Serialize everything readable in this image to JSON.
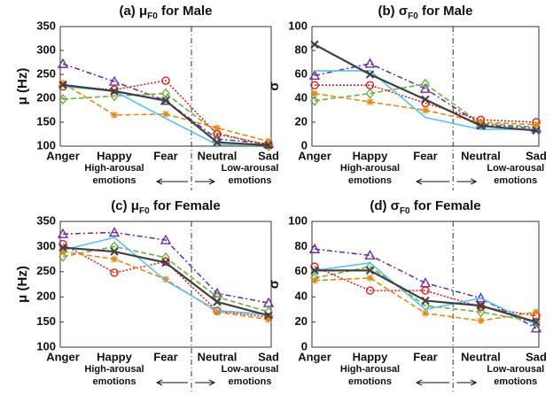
{
  "chart_data": [
    {
      "type": "line",
      "title": {
        "prefix": "(a) μ",
        "sub": "F0",
        "suffix": " for Male"
      },
      "ylabel": "μ (Hz)",
      "categories": [
        "Anger",
        "Happy",
        "Fear",
        "Neutral",
        "Sad"
      ],
      "ylim": [
        100,
        350
      ],
      "yticks": [
        100,
        150,
        200,
        250,
        300,
        350
      ],
      "annotations": [
        [
          "High-arousal",
          "emotions"
        ],
        [
          "Low-arousal",
          "emotions"
        ]
      ],
      "series": [
        {
          "color": "#7030a0",
          "dash": "6 3 2 3",
          "marker": "triangle",
          "values": [
            272,
            235,
            195,
            115,
            105
          ]
        },
        {
          "color": "#70ad47",
          "dash": "6 3",
          "marker": "diamond",
          "values": [
            198,
            205,
            210,
            128,
            100
          ]
        },
        {
          "color": "#e02020",
          "dash": "2 2",
          "marker": "circle",
          "values": [
            225,
            218,
            237,
            125,
            103
          ]
        },
        {
          "color": "#e08a1e",
          "dash": "6 3",
          "marker": "star",
          "values": [
            232,
            165,
            167,
            138,
            110
          ]
        },
        {
          "color": "#5bc0eb",
          "dash": "",
          "marker": "none",
          "values": [
            225,
            215,
            158,
            103,
            103
          ]
        },
        {
          "color": "#404040",
          "dash": "",
          "marker": "x",
          "values": [
            228,
            215,
            195,
            108,
            102
          ]
        }
      ]
    },
    {
      "type": "line",
      "title": {
        "prefix": "(b) σ",
        "sub": "F0",
        "suffix": " for Male"
      },
      "ylabel": "σ",
      "categories": [
        "Anger",
        "Happy",
        "Fear",
        "Neutral",
        "Sad"
      ],
      "ylim": [
        0,
        100
      ],
      "yticks": [
        0,
        20,
        40,
        60,
        80,
        100
      ],
      "annotations": [
        [
          "High-arousal",
          "emotions"
        ],
        [
          "Low-arousal",
          "emotions"
        ]
      ],
      "series": [
        {
          "color": "#7030a0",
          "dash": "6 3 2 3",
          "marker": "triangle",
          "values": [
            59,
            69,
            48,
            18,
            15
          ]
        },
        {
          "color": "#70ad47",
          "dash": "6 3",
          "marker": "diamond",
          "values": [
            38,
            44,
            52,
            19,
            16
          ]
        },
        {
          "color": "#e02020",
          "dash": "2 2",
          "marker": "circle",
          "values": [
            51,
            51,
            36,
            22,
            20
          ]
        },
        {
          "color": "#e08a1e",
          "dash": "6 3",
          "marker": "star",
          "values": [
            44,
            37,
            30,
            20,
            18
          ]
        },
        {
          "color": "#5bc0eb",
          "dash": "",
          "marker": "none",
          "values": [
            63,
            63,
            24,
            14,
            14
          ]
        },
        {
          "color": "#404040",
          "dash": "",
          "marker": "x",
          "values": [
            85,
            60,
            39,
            17,
            13
          ]
        }
      ]
    },
    {
      "type": "line",
      "title": {
        "prefix": "(c) μ",
        "sub": "F0",
        "suffix": " for Female"
      },
      "ylabel": "μ (Hz)",
      "categories": [
        "Anger",
        "Happy",
        "Fear",
        "Neutral",
        "Sad"
      ],
      "ylim": [
        100,
        350
      ],
      "yticks": [
        100,
        150,
        200,
        250,
        300,
        350
      ],
      "annotations": [
        [
          "High-arousal",
          "emotions"
        ],
        [
          "Low-arousal",
          "emotions"
        ]
      ],
      "series": [
        {
          "color": "#7030a0",
          "dash": "6 3 2 3",
          "marker": "triangle",
          "values": [
            325,
            328,
            313,
            207,
            188
          ]
        },
        {
          "color": "#70ad47",
          "dash": "6 3",
          "marker": "diamond",
          "values": [
            280,
            300,
            278,
            200,
            170
          ]
        },
        {
          "color": "#e02020",
          "dash": "2 2",
          "marker": "circle",
          "values": [
            305,
            248,
            270,
            172,
            160
          ]
        },
        {
          "color": "#e08a1e",
          "dash": "6 3",
          "marker": "star",
          "values": [
            290,
            275,
            235,
            170,
            155
          ]
        },
        {
          "color": "#5bc0eb",
          "dash": "",
          "marker": "none",
          "values": [
            293,
            318,
            232,
            173,
            165
          ]
        },
        {
          "color": "#404040",
          "dash": "",
          "marker": "x",
          "values": [
            298,
            290,
            268,
            190,
            163
          ]
        }
      ]
    },
    {
      "type": "line",
      "title": {
        "prefix": "(d) σ",
        "sub": "F0",
        "suffix": " for Female"
      },
      "ylabel": "σ",
      "categories": [
        "Anger",
        "Happy",
        "Fear",
        "Neutral",
        "Sad"
      ],
      "ylim": [
        0,
        100
      ],
      "yticks": [
        0,
        20,
        40,
        60,
        80,
        100
      ],
      "annotations": [
        [
          "High-arousal",
          "emotions"
        ],
        [
          "Low-arousal",
          "emotions"
        ]
      ],
      "series": [
        {
          "color": "#7030a0",
          "dash": "6 3 2 3",
          "marker": "triangle",
          "values": [
            78,
            73,
            51,
            39,
            15
          ]
        },
        {
          "color": "#70ad47",
          "dash": "6 3",
          "marker": "diamond",
          "values": [
            55,
            64,
            33,
            28,
            20
          ]
        },
        {
          "color": "#e02020",
          "dash": "2 2",
          "marker": "circle",
          "values": [
            64,
            45,
            45,
            32,
            25
          ]
        },
        {
          "color": "#e08a1e",
          "dash": "6 3",
          "marker": "star",
          "values": [
            53,
            55,
            27,
            21,
            28
          ]
        },
        {
          "color": "#5bc0eb",
          "dash": "",
          "marker": "none",
          "values": [
            61,
            67,
            30,
            39,
            18
          ]
        },
        {
          "color": "#404040",
          "dash": "",
          "marker": "x",
          "values": [
            61,
            61,
            37,
            33,
            20
          ]
        }
      ]
    }
  ]
}
